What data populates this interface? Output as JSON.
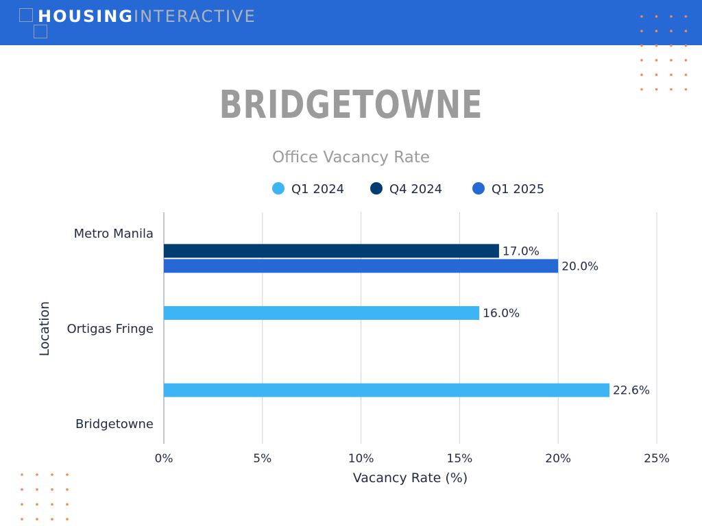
{
  "header": {
    "brand_primary": "HOUSING",
    "brand_secondary": "INTERACTIVE",
    "background_color": "#2769d4"
  },
  "title": "BRIDGETOWNE",
  "subtitle": "Office Vacancy Rate",
  "decor": {
    "dot_color": "#f58a4b"
  },
  "chart_data": {
    "type": "bar",
    "orientation": "horizontal",
    "title": "Office Vacancy Rate",
    "xlabel": "Vacancy Rate (%)",
    "ylabel": "Location",
    "categories": [
      "Metro Manila",
      "Ortigas Fringe",
      "Bridgetowne"
    ],
    "xlim": [
      0,
      25
    ],
    "x_ticks": [
      0,
      5,
      10,
      15,
      20,
      25
    ],
    "x_tick_labels": [
      "0%",
      "5%",
      "10%",
      "15%",
      "20%",
      "25%"
    ],
    "grid": "vertical",
    "legend_position": "top",
    "series": [
      {
        "name": "Q1 2024",
        "color": "#3db5f5",
        "values": [
          null,
          16.0,
          22.6
        ],
        "labels": [
          "",
          "16.0%",
          "22.6%"
        ]
      },
      {
        "name": "Q4 2024",
        "color": "#003d73",
        "values": [
          17.0,
          null,
          null
        ],
        "labels": [
          "17.0%",
          "",
          ""
        ]
      },
      {
        "name": "Q1 2025",
        "color": "#2769d4",
        "values": [
          20.0,
          null,
          null
        ],
        "labels": [
          "20.0%",
          "",
          ""
        ]
      }
    ]
  }
}
